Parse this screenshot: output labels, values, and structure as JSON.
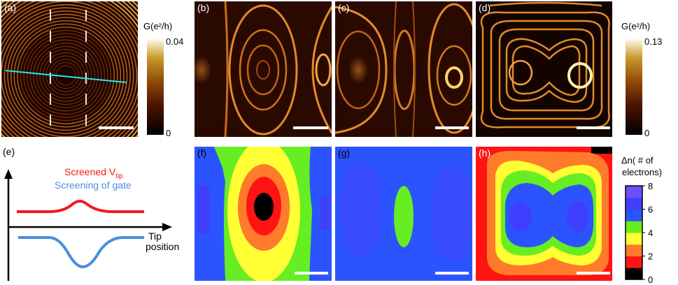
{
  "panels": [
    {
      "label": "(a)"
    },
    {
      "label": "(b)"
    },
    {
      "label": "(c)"
    },
    {
      "label": "(d)"
    },
    {
      "label": "(e)"
    },
    {
      "label": "(f)"
    },
    {
      "label": "(g)"
    },
    {
      "label": "(h)"
    }
  ],
  "colorbar_conductance_small": {
    "title": "G(e²/h)",
    "max_label": "0.04",
    "min_label": "0"
  },
  "colorbar_conductance_large": {
    "title": "G(e²/h)",
    "max_label": "0.13",
    "min_label": "0"
  },
  "colorbar_density": {
    "title_line1": "Δn( # of",
    "title_line2": "electrons)",
    "ticks": [
      "8",
      "6",
      "4",
      "2",
      "0"
    ],
    "colors": [
      "#000000",
      "#ff1414",
      "#ff7a2a",
      "#ffff33",
      "#66ee22",
      "#2b54ff",
      "#3f3fff",
      "#6a50ff"
    ]
  },
  "panel_e": {
    "screened_label": "Screened V",
    "screened_sub": "tip",
    "screening_label": "Screening of gate",
    "axis_label_line1": "Tip",
    "axis_label_line2": "position",
    "screened_color": "#ee1c1c",
    "screening_color": "#4a8ede"
  }
}
